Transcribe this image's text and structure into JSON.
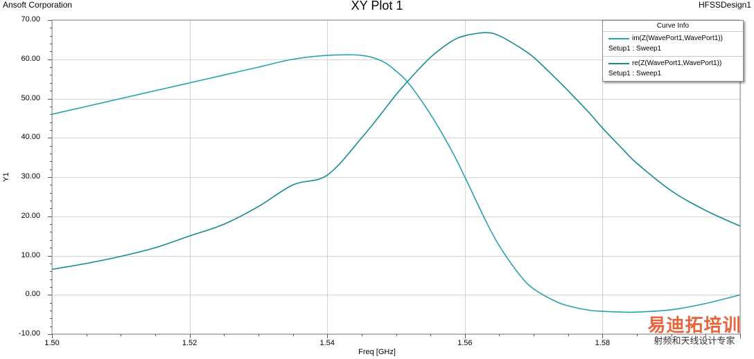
{
  "header": {
    "company": "Ansoft Corporation",
    "title": "XY Plot 1",
    "design": "HFSSDesign1"
  },
  "legend": {
    "title": "Curve Info",
    "entries": [
      {
        "name": "im(Z(WavePort1,WavePort1))",
        "sub": "Setup1 : Sweep1",
        "color": "#26a3ad"
      },
      {
        "name": "re(Z(WavePort1,WavePort1))",
        "sub": "Setup1 : Sweep1",
        "color": "#128a8f"
      }
    ]
  },
  "watermark": {
    "main": "易迪拓培训",
    "sub": "射频和天线设计专家"
  },
  "chart_data": {
    "type": "line",
    "title": "XY Plot 1",
    "xlabel": "Freq [GHz]",
    "ylabel": "Y1",
    "xlim": [
      1.5,
      1.6
    ],
    "ylim": [
      -10,
      70
    ],
    "x_ticks": [
      "1.50",
      "1.52",
      "1.54",
      "1.56",
      "1.58"
    ],
    "y_ticks": [
      "70.00",
      "60.00",
      "50.00",
      "40.00",
      "30.00",
      "20.00",
      "10.00",
      "0.00",
      "-10.00"
    ],
    "grid": true,
    "legend_position": "top-right",
    "series": [
      {
        "name": "im(Z(WavePort1,WavePort1))",
        "color": "#26a3ad",
        "x": [
          1.5,
          1.505,
          1.51,
          1.515,
          1.52,
          1.525,
          1.53,
          1.535,
          1.54,
          1.545,
          1.548,
          1.55,
          1.552,
          1.555,
          1.558,
          1.56,
          1.563,
          1.565,
          1.568,
          1.57,
          1.573,
          1.575,
          1.578,
          1.58,
          1.583,
          1.585,
          1.59,
          1.595,
          1.6
        ],
        "y": [
          46.0,
          48.0,
          50.0,
          52.0,
          54.0,
          56.0,
          58.0,
          60.0,
          61.0,
          61.0,
          59.5,
          57.0,
          53.5,
          46.0,
          37.0,
          30.0,
          19.0,
          12.5,
          5.0,
          1.5,
          -1.5,
          -2.8,
          -3.9,
          -4.2,
          -4.4,
          -4.4,
          -3.8,
          -2.2,
          0.0
        ]
      },
      {
        "name": "re(Z(WavePort1,WavePort1))",
        "color": "#128a8f",
        "x": [
          1.5,
          1.505,
          1.51,
          1.515,
          1.52,
          1.525,
          1.53,
          1.535,
          1.54,
          1.545,
          1.548,
          1.55,
          1.552,
          1.555,
          1.558,
          1.56,
          1.563,
          1.565,
          1.568,
          1.57,
          1.573,
          1.575,
          1.578,
          1.58,
          1.583,
          1.585,
          1.59,
          1.595,
          1.6
        ],
        "y": [
          6.5,
          8.0,
          9.8,
          12.0,
          15.0,
          18.0,
          22.5,
          28.0,
          30.5,
          40.0,
          46.5,
          51.0,
          55.0,
          60.5,
          64.5,
          66.0,
          66.8,
          66.0,
          63.0,
          60.5,
          55.5,
          52.0,
          46.5,
          42.5,
          37.0,
          33.5,
          26.5,
          21.5,
          17.5
        ]
      }
    ]
  }
}
